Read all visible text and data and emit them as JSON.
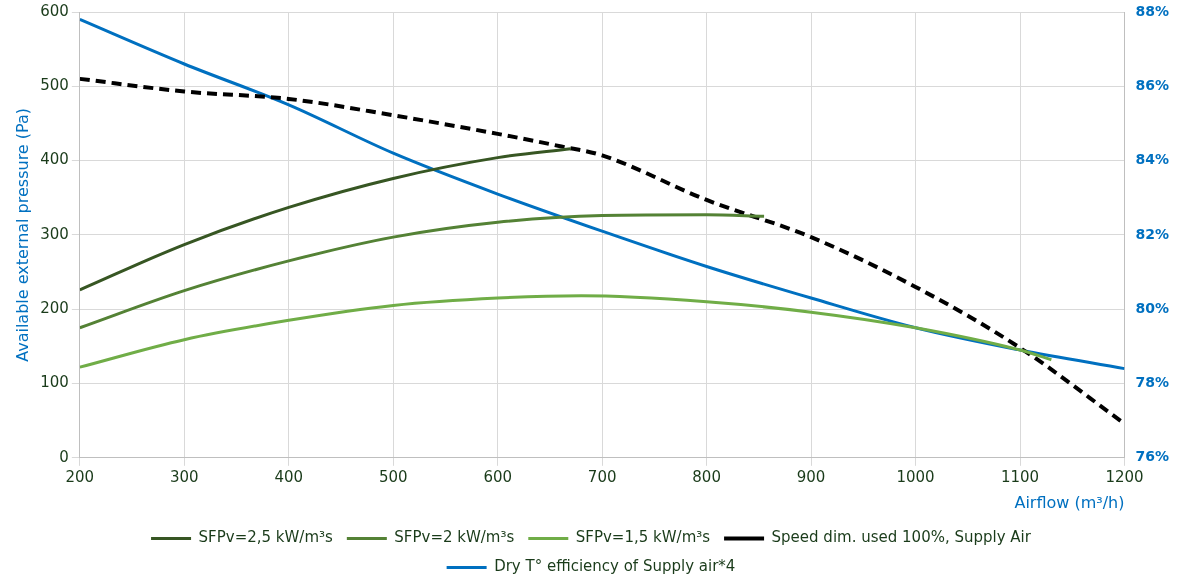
{
  "chart_data": {
    "type": "line",
    "xlabel": "Airflow (m³/h)",
    "ylabel": "Available external pressure (Pa)",
    "xlim": [
      200,
      1200
    ],
    "xticks": [
      200,
      300,
      400,
      500,
      600,
      700,
      800,
      900,
      1000,
      1100,
      1200
    ],
    "ylim": [
      0,
      600
    ],
    "yticks": [
      0,
      100,
      200,
      300,
      400,
      500,
      600
    ],
    "y2lim": [
      76,
      88
    ],
    "y2ticks": [
      {
        "value": 76,
        "label": "76%"
      },
      {
        "value": 78,
        "label": "78%"
      },
      {
        "value": 80,
        "label": "80%"
      },
      {
        "value": 82,
        "label": "82%"
      },
      {
        "value": 84,
        "label": "84%"
      },
      {
        "value": 86,
        "label": "86%"
      },
      {
        "value": 88,
        "label": "88%"
      }
    ],
    "grid": true,
    "legend": "bottom",
    "marker": "none",
    "series": [
      {
        "name": "SFPv=2,5 kW/m³s",
        "color": "#375623",
        "x": [
          200,
          300,
          400,
          500,
          600,
          670
        ],
        "values": [
          226,
          287,
          337,
          376,
          404,
          416
        ]
      },
      {
        "name": "SFPv=2 kW/m³s",
        "color": "#548235",
        "x": [
          200,
          300,
          400,
          500,
          600,
          700,
          800,
          855
        ],
        "values": [
          175,
          225,
          265,
          297,
          317,
          326,
          327,
          325
        ]
      },
      {
        "name": "SFPv=1,5 kW/m³s",
        "color": "#70ad47",
        "x": [
          200,
          300,
          400,
          500,
          600,
          680,
          800,
          900,
          1000,
          1100,
          1130
        ],
        "values": [
          122,
          159,
          185,
          205,
          215,
          218,
          210,
          196,
          175,
          145,
          132
        ]
      },
      {
        "name": "Speed dim. used 100%, Supply Air",
        "color": "#000000",
        "line_style": "dashed",
        "x": [
          200,
          300,
          400,
          500,
          600,
          661,
          700,
          800,
          900,
          1000,
          1100,
          1200
        ],
        "values": [
          510,
          493,
          483,
          461,
          436,
          419,
          407,
          347,
          297,
          230,
          148,
          46
        ]
      },
      {
        "name": "Dry T° efficiency of Supply air*4",
        "color": "#0070c0",
        "axis": "y2",
        "x": [
          200,
          300,
          400,
          500,
          600,
          700,
          800,
          900,
          1000,
          1100,
          1200
        ],
        "values": [
          87.8,
          86.6,
          85.5,
          84.2,
          83.1,
          82.1,
          81.15,
          80.3,
          79.5,
          78.9,
          78.4
        ]
      }
    ]
  }
}
